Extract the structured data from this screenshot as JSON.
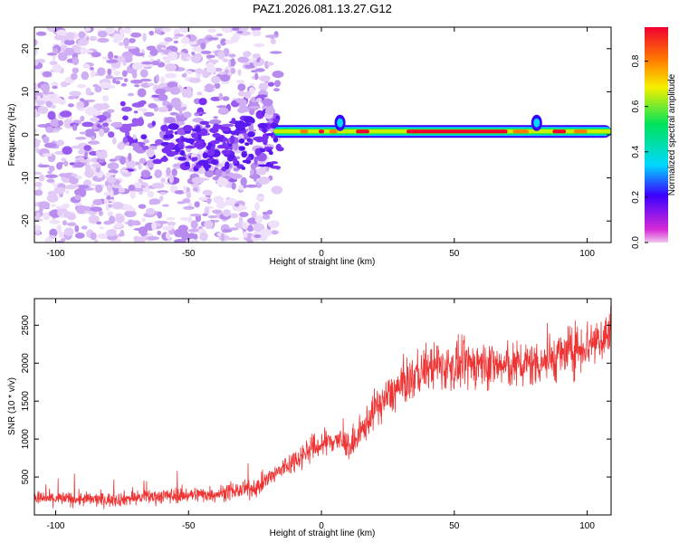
{
  "title": "PAZ1.2026.081.13.27.G12",
  "chart_data": [
    {
      "type": "heatmap",
      "name": "spectrogram",
      "xlabel": "Height of straight line (km)",
      "ylabel": "Frequency (Hz)",
      "xlim": [
        -108,
        109
      ],
      "ylim": [
        -25,
        25
      ],
      "xticks": [
        -100,
        -50,
        0,
        50,
        100
      ],
      "yticks": [
        -20,
        -10,
        0,
        10,
        20
      ],
      "colorbar": {
        "label": "Normalized spectral amplitude",
        "range": [
          0,
          0.95
        ],
        "ticks": [
          0.0,
          0.2,
          0.4,
          0.6,
          0.8
        ],
        "tick_labels": [
          "0.0",
          "0.2",
          "0.4",
          "0.6",
          "0.8"
        ],
        "colors": [
          "#d62bd6",
          "#3a00ff",
          "#00d8ff",
          "#00e35a",
          "#f6f000",
          "#ff7a00",
          "#f00030"
        ]
      },
      "description_notes": "Scattered low-amplitude purple noise below ~-15 km; strong narrow tone near 0-1 Hz above ~-15 km",
      "tone_band": {
        "x_range": [
          -18,
          109
        ],
        "frequency_hz": 0.8,
        "amplitude_points": [
          {
            "x": -18,
            "amp": 0.3
          },
          {
            "x": -10,
            "amp": 0.55
          },
          {
            "x": 0,
            "amp": 0.65
          },
          {
            "x": 5,
            "amp": 0.5
          },
          {
            "x": 15,
            "amp": 0.8
          },
          {
            "x": 25,
            "amp": 0.7
          },
          {
            "x": 40,
            "amp": 0.85
          },
          {
            "x": 60,
            "amp": 0.8
          },
          {
            "x": 78,
            "amp": 0.75
          },
          {
            "x": 82,
            "amp": 0.35
          },
          {
            "x": 90,
            "amp": 0.8
          },
          {
            "x": 109,
            "amp": 0.6
          }
        ]
      }
    },
    {
      "type": "line",
      "name": "snr",
      "xlabel": "Height of straight line (km)",
      "ylabel": "SNR (10 * v/v)",
      "xlim": [
        -108,
        109
      ],
      "ylim": [
        0,
        2850
      ],
      "xticks": [
        -100,
        -50,
        0,
        50,
        100
      ],
      "yticks": [
        500,
        1000,
        1500,
        2000,
        2500
      ],
      "color": "#ee3333",
      "trend": {
        "x": [
          -108,
          -80,
          -60,
          -40,
          -25,
          -15,
          -5,
          5,
          12,
          20,
          30,
          40,
          50,
          60,
          70,
          80,
          90,
          100,
          109
        ],
        "y": [
          220,
          200,
          250,
          280,
          350,
          600,
          850,
          1000,
          900,
          1400,
          1700,
          1950,
          1950,
          2000,
          1950,
          2000,
          2100,
          2250,
          2400
        ]
      }
    }
  ]
}
